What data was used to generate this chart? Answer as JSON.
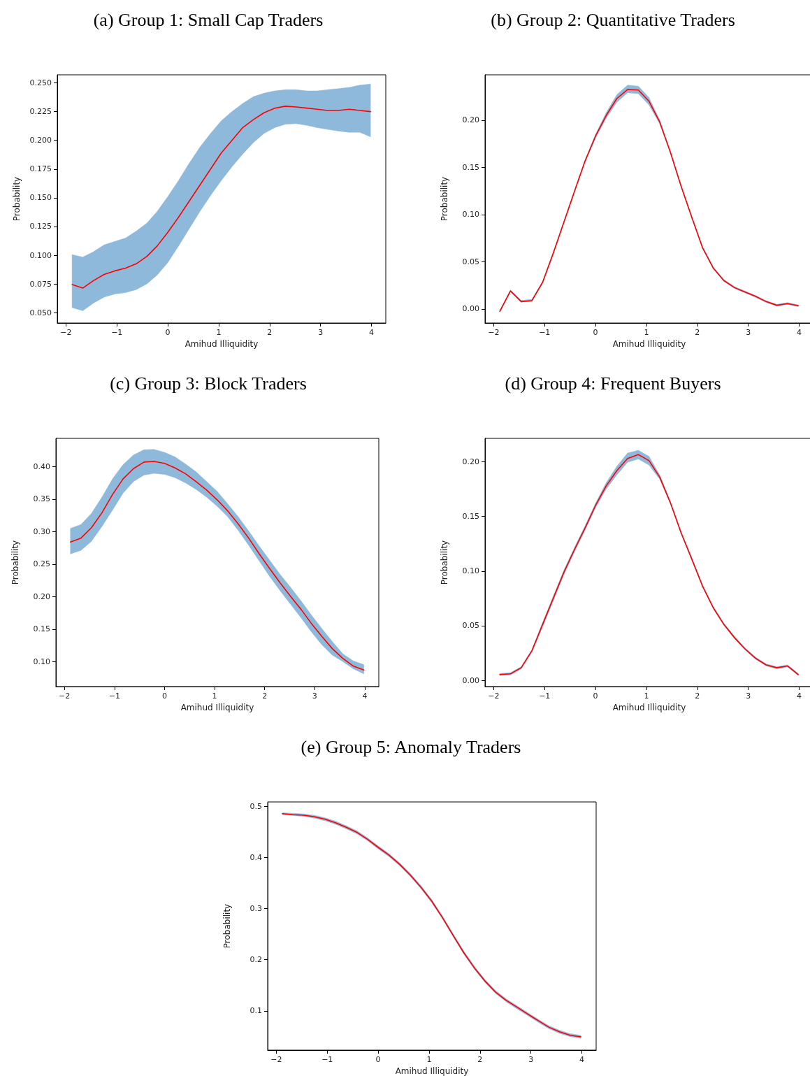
{
  "chart_data": [
    {
      "type": "line",
      "title": "(a) Group 1: Small Cap Traders",
      "xlabel": "Amihud Illiquidity",
      "ylabel": "Probability",
      "xlim": [
        -2.17,
        4.28
      ],
      "ylim": [
        0.041,
        0.257
      ],
      "xticks": [
        -2,
        -1,
        0,
        1,
        2,
        3,
        4
      ],
      "yticks": [
        {
          "value": 0.05,
          "label": "0.050"
        },
        {
          "value": 0.075,
          "label": "0.075"
        },
        {
          "value": 0.1,
          "label": "0.100"
        },
        {
          "value": 0.125,
          "label": "0.125"
        },
        {
          "value": 0.15,
          "label": "0.150"
        },
        {
          "value": 0.175,
          "label": "0.175"
        },
        {
          "value": 0.2,
          "label": "0.200"
        },
        {
          "value": 0.225,
          "label": "0.225"
        },
        {
          "value": 0.25,
          "label": "0.250"
        }
      ],
      "x": [
        -1.88,
        -1.67,
        -1.46,
        -1.25,
        -1.04,
        -0.83,
        -0.62,
        -0.41,
        -0.21,
        0,
        0.21,
        0.42,
        0.63,
        0.84,
        1.05,
        1.26,
        1.47,
        1.68,
        1.89,
        2.1,
        2.31,
        2.52,
        2.73,
        2.93,
        3.14,
        3.35,
        3.56,
        3.77,
        3.98
      ],
      "grid": false,
      "marker": "none",
      "line_style": "solid",
      "series": [
        {
          "color": "#ff0000",
          "values": [
            0.0744,
            0.0714,
            0.0779,
            0.0833,
            0.0864,
            0.0888,
            0.0925,
            0.099,
            0.108,
            0.12,
            0.133,
            0.147,
            0.161,
            0.175,
            0.189,
            0.2,
            0.211,
            0.218,
            0.224,
            0.228,
            0.2297,
            0.229,
            0.228,
            0.227,
            0.226,
            0.226,
            0.227,
            0.226,
            0.225
          ],
          "upper": [
            0.1005,
            0.0984,
            0.103,
            0.109,
            0.112,
            0.115,
            0.121,
            0.128,
            0.138,
            0.151,
            0.165,
            0.18,
            0.194,
            0.206,
            0.217,
            0.225,
            0.232,
            0.238,
            0.241,
            0.243,
            0.244,
            0.244,
            0.243,
            0.243,
            0.244,
            0.245,
            0.246,
            0.248,
            0.249
          ],
          "lower": [
            0.0544,
            0.0517,
            0.0583,
            0.0635,
            0.0663,
            0.0674,
            0.07,
            0.075,
            0.0827,
            0.0936,
            0.108,
            0.123,
            0.138,
            0.152,
            0.165,
            0.177,
            0.188,
            0.198,
            0.206,
            0.211,
            0.214,
            0.2145,
            0.213,
            0.211,
            0.2095,
            0.208,
            0.207,
            0.207,
            0.203
          ]
        }
      ]
    },
    {
      "type": "line",
      "title": "(b) Group 2: Quantitative Traders",
      "xlabel": "Amihud Illiquidity",
      "ylabel": "Probability",
      "xlim": [
        -2.17,
        4.28
      ],
      "ylim": [
        -0.015,
        0.248
      ],
      "xticks": [
        -2,
        -1,
        0,
        1,
        2,
        3,
        4
      ],
      "yticks": [
        {
          "value": 0,
          "label": "0.00"
        },
        {
          "value": 0.05,
          "label": "0.05"
        },
        {
          "value": 0.1,
          "label": "0.10"
        },
        {
          "value": 0.15,
          "label": "0.15"
        },
        {
          "value": 0.2,
          "label": "0.20"
        }
      ],
      "x": [
        -1.88,
        -1.67,
        -1.46,
        -1.25,
        -1.04,
        -0.83,
        -0.62,
        -0.41,
        -0.21,
        0,
        0.21,
        0.42,
        0.63,
        0.84,
        1.05,
        1.26,
        1.47,
        1.68,
        1.89,
        2.1,
        2.31,
        2.52,
        2.73,
        2.93,
        3.14,
        3.35,
        3.56,
        3.77,
        3.98
      ],
      "grid": false,
      "marker": "none",
      "line_style": "solid",
      "series": [
        {
          "color": "#ff0000",
          "values": [
            -0.0026,
            0.019,
            0.0077,
            0.0087,
            0.028,
            0.059,
            0.092,
            0.125,
            0.156,
            0.183,
            0.205,
            0.223,
            0.2324,
            0.2319,
            0.22,
            0.198,
            0.166,
            0.13,
            0.097,
            0.065,
            0.0434,
            0.03,
            0.0225,
            0.018,
            0.0133,
            0.0077,
            0.0038,
            0.0056,
            0.0033
          ],
          "upper": [
            -0.0016,
            0.02,
            0.009,
            0.01,
            0.029,
            0.06,
            0.093,
            0.126,
            0.157,
            0.185,
            0.208,
            0.227,
            0.237,
            0.236,
            0.224,
            0.2,
            0.167,
            0.131,
            0.098,
            0.066,
            0.0444,
            0.031,
            0.0235,
            0.019,
            0.0143,
            0.0087,
            0.0048,
            0.0066,
            0.0043
          ],
          "lower": [
            -0.0036,
            0.018,
            0.007,
            0.008,
            0.027,
            0.058,
            0.091,
            0.124,
            0.155,
            0.181,
            0.202,
            0.219,
            0.229,
            0.228,
            0.216,
            0.196,
            0.165,
            0.129,
            0.096,
            0.064,
            0.0424,
            0.029,
            0.0215,
            0.017,
            0.0123,
            0.0067,
            0.0028,
            0.0046,
            0.0023
          ]
        }
      ]
    },
    {
      "type": "line",
      "title": "(c) Group 3: Block Traders",
      "xlabel": "Amihud Illiquidity",
      "ylabel": "Probability",
      "xlim": [
        -2.17,
        4.28
      ],
      "ylim": [
        0.0615,
        0.4435
      ],
      "xticks": [
        -2,
        -1,
        0,
        1,
        2,
        3,
        4
      ],
      "yticks": [
        {
          "value": 0.1,
          "label": "0.10"
        },
        {
          "value": 0.15,
          "label": "0.15"
        },
        {
          "value": 0.2,
          "label": "0.20"
        },
        {
          "value": 0.25,
          "label": "0.25"
        },
        {
          "value": 0.3,
          "label": "0.30"
        },
        {
          "value": 0.35,
          "label": "0.35"
        },
        {
          "value": 0.4,
          "label": "0.40"
        }
      ],
      "x": [
        -1.88,
        -1.67,
        -1.46,
        -1.25,
        -1.04,
        -0.83,
        -0.62,
        -0.41,
        -0.21,
        0,
        0.21,
        0.42,
        0.63,
        0.84,
        1.05,
        1.26,
        1.47,
        1.68,
        1.89,
        2.1,
        2.31,
        2.52,
        2.73,
        2.93,
        3.14,
        3.35,
        3.56,
        3.77,
        3.98
      ],
      "grid": false,
      "marker": "none",
      "line_style": "solid",
      "series": [
        {
          "color": "#ff0000",
          "values": [
            0.284,
            0.29,
            0.306,
            0.329,
            0.357,
            0.381,
            0.397,
            0.407,
            0.408,
            0.405,
            0.398,
            0.389,
            0.377,
            0.364,
            0.349,
            0.332,
            0.312,
            0.29,
            0.266,
            0.243,
            0.221,
            0.2,
            0.18,
            0.159,
            0.139,
            0.12,
            0.105,
            0.093,
            0.087
          ],
          "upper": [
            0.305,
            0.311,
            0.328,
            0.353,
            0.381,
            0.403,
            0.418,
            0.426,
            0.4266,
            0.422,
            0.415,
            0.404,
            0.392,
            0.377,
            0.362,
            0.343,
            0.323,
            0.301,
            0.278,
            0.256,
            0.234,
            0.214,
            0.193,
            0.172,
            0.151,
            0.131,
            0.112,
            0.101,
            0.0954
          ],
          "lower": [
            0.2656,
            0.271,
            0.285,
            0.308,
            0.333,
            0.359,
            0.377,
            0.387,
            0.3896,
            0.388,
            0.383,
            0.375,
            0.365,
            0.353,
            0.339,
            0.323,
            0.302,
            0.279,
            0.255,
            0.231,
            0.209,
            0.188,
            0.167,
            0.146,
            0.126,
            0.11,
            0.1,
            0.0888,
            0.0811
          ]
        }
      ]
    },
    {
      "type": "line",
      "title": "(d) Group 4: Frequent Buyers",
      "xlabel": "Amihud Illiquidity",
      "ylabel": "Probability",
      "xlim": [
        -2.17,
        4.28
      ],
      "ylim": [
        -0.0057,
        0.2214
      ],
      "xticks": [
        -2,
        -1,
        0,
        1,
        2,
        3,
        4
      ],
      "yticks": [
        {
          "value": 0,
          "label": "0.00"
        },
        {
          "value": 0.05,
          "label": "0.05"
        },
        {
          "value": 0.1,
          "label": "0.10"
        },
        {
          "value": 0.15,
          "label": "0.15"
        },
        {
          "value": 0.2,
          "label": "0.20"
        }
      ],
      "x": [
        -1.88,
        -1.67,
        -1.46,
        -1.25,
        -1.04,
        -0.83,
        -0.62,
        -0.41,
        -0.21,
        0,
        0.21,
        0.42,
        0.63,
        0.84,
        1.05,
        1.26,
        1.47,
        1.68,
        1.89,
        2.1,
        2.31,
        2.52,
        2.73,
        2.93,
        3.14,
        3.35,
        3.56,
        3.77,
        3.98
      ],
      "grid": false,
      "marker": "none",
      "line_style": "solid",
      "series": [
        {
          "color": "#ff0000",
          "values": [
            0.0053,
            0.006,
            0.0115,
            0.027,
            0.051,
            0.075,
            0.099,
            0.12,
            0.139,
            0.16,
            0.178,
            0.192,
            0.203,
            0.2066,
            0.201,
            0.186,
            0.1625,
            0.135,
            0.111,
            0.0864,
            0.0666,
            0.0512,
            0.039,
            0.029,
            0.0203,
            0.0141,
            0.0115,
            0.0132,
            0.0053
          ],
          "upper": [
            0.0063,
            0.007,
            0.0125,
            0.028,
            0.053,
            0.077,
            0.101,
            0.122,
            0.141,
            0.162,
            0.181,
            0.196,
            0.208,
            0.2105,
            0.205,
            0.188,
            0.1635,
            0.136,
            0.112,
            0.0874,
            0.0676,
            0.0522,
            0.04,
            0.03,
            0.0213,
            0.0151,
            0.0125,
            0.0142,
            0.0063
          ],
          "lower": [
            0.0043,
            0.005,
            0.0105,
            0.026,
            0.049,
            0.073,
            0.097,
            0.118,
            0.137,
            0.158,
            0.175,
            0.188,
            0.1995,
            0.2025,
            0.197,
            0.184,
            0.1615,
            0.134,
            0.11,
            0.0854,
            0.0656,
            0.0502,
            0.038,
            0.028,
            0.0193,
            0.0131,
            0.0105,
            0.0122,
            0.0043
          ]
        }
      ]
    },
    {
      "type": "line",
      "title": "(e) Group 5: Anomaly Traders",
      "xlabel": "Amihud Illiquidity",
      "ylabel": "Probability",
      "xlim": [
        -2.17,
        4.28
      ],
      "ylim": [
        0.023,
        0.509
      ],
      "xticks": [
        -2,
        -1,
        0,
        1,
        2,
        3,
        4
      ],
      "yticks": [
        0.1,
        0.2,
        0.3,
        0.4,
        0.5
      ],
      "x": [
        -1.88,
        -1.67,
        -1.46,
        -1.25,
        -1.04,
        -0.83,
        -0.62,
        -0.41,
        -0.21,
        0,
        0.21,
        0.42,
        0.63,
        0.84,
        1.05,
        1.26,
        1.47,
        1.68,
        1.89,
        2.1,
        2.31,
        2.52,
        2.73,
        2.93,
        3.14,
        3.35,
        3.56,
        3.77,
        3.98
      ],
      "grid": false,
      "marker": "none",
      "line_style": "solid",
      "series": [
        {
          "color": "#ff0000",
          "values": [
            0.486,
            0.484,
            0.483,
            0.48,
            0.475,
            0.468,
            0.459,
            0.449,
            0.436,
            0.42,
            0.405,
            0.387,
            0.366,
            0.342,
            0.315,
            0.283,
            0.248,
            0.214,
            0.184,
            0.158,
            0.136,
            0.12,
            0.107,
            0.094,
            0.081,
            0.068,
            0.059,
            0.052,
            0.049
          ],
          "upper": [
            0.4878,
            0.4866,
            0.4855,
            0.4828,
            0.478,
            0.471,
            0.462,
            0.452,
            0.439,
            0.423,
            0.408,
            0.39,
            0.369,
            0.345,
            0.318,
            0.286,
            0.251,
            0.217,
            0.187,
            0.161,
            0.1394,
            0.123,
            0.1096,
            0.097,
            0.0836,
            0.071,
            0.0619,
            0.0553,
            0.052
          ],
          "lower": [
            0.4838,
            0.4822,
            0.4805,
            0.4772,
            0.472,
            0.465,
            0.456,
            0.446,
            0.433,
            0.417,
            0.402,
            0.384,
            0.363,
            0.339,
            0.312,
            0.28,
            0.245,
            0.211,
            0.181,
            0.155,
            0.1334,
            0.117,
            0.1036,
            0.091,
            0.0776,
            0.065,
            0.0559,
            0.0493,
            0.046
          ]
        }
      ]
    }
  ]
}
